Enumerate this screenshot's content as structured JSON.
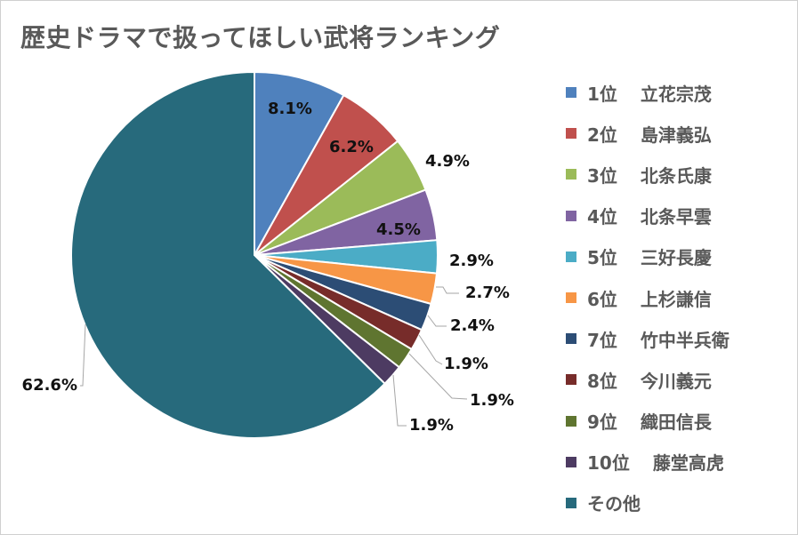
{
  "chart_data": {
    "type": "pie",
    "title": "歴史ドラマで扱ってほしい武将ランキング",
    "start_angle": "12 o'clock",
    "direction": "clockwise",
    "legend_position": "right",
    "slices": [
      {
        "rank": "1位",
        "name": "立花宗茂",
        "value": 8.1,
        "label": "8.1%",
        "color": "#4f81bd"
      },
      {
        "rank": "2位",
        "name": "島津義弘",
        "value": 6.2,
        "label": "6.2%",
        "color": "#c0504d"
      },
      {
        "rank": "3位",
        "name": "北条氏康",
        "value": 4.9,
        "label": "4.9%",
        "color": "#9bbb59"
      },
      {
        "rank": "4位",
        "name": "北条早雲",
        "value": 4.5,
        "label": "4.5%",
        "color": "#8064a2"
      },
      {
        "rank": "5位",
        "name": "三好長慶",
        "value": 2.9,
        "label": "2.9%",
        "color": "#4bacc6"
      },
      {
        "rank": "6位",
        "name": "上杉謙信",
        "value": 2.7,
        "label": "2.7%",
        "color": "#f79646"
      },
      {
        "rank": "7位",
        "name": "竹中半兵衛",
        "value": 2.4,
        "label": "2.4%",
        "color": "#2c4d75"
      },
      {
        "rank": "8位",
        "name": "今川義元",
        "value": 1.9,
        "label": "1.9%",
        "color": "#772c2a"
      },
      {
        "rank": "9位",
        "name": "織田信長",
        "value": 1.9,
        "label": "1.9%",
        "color": "#5f7530"
      },
      {
        "rank": "10位",
        "name": "藤堂高虎",
        "value": 1.9,
        "label": "1.9%",
        "color": "#4d3b62"
      },
      {
        "rank": "その他",
        "name": "",
        "value": 62.6,
        "label": "62.6%",
        "color": "#276a7c"
      }
    ]
  }
}
